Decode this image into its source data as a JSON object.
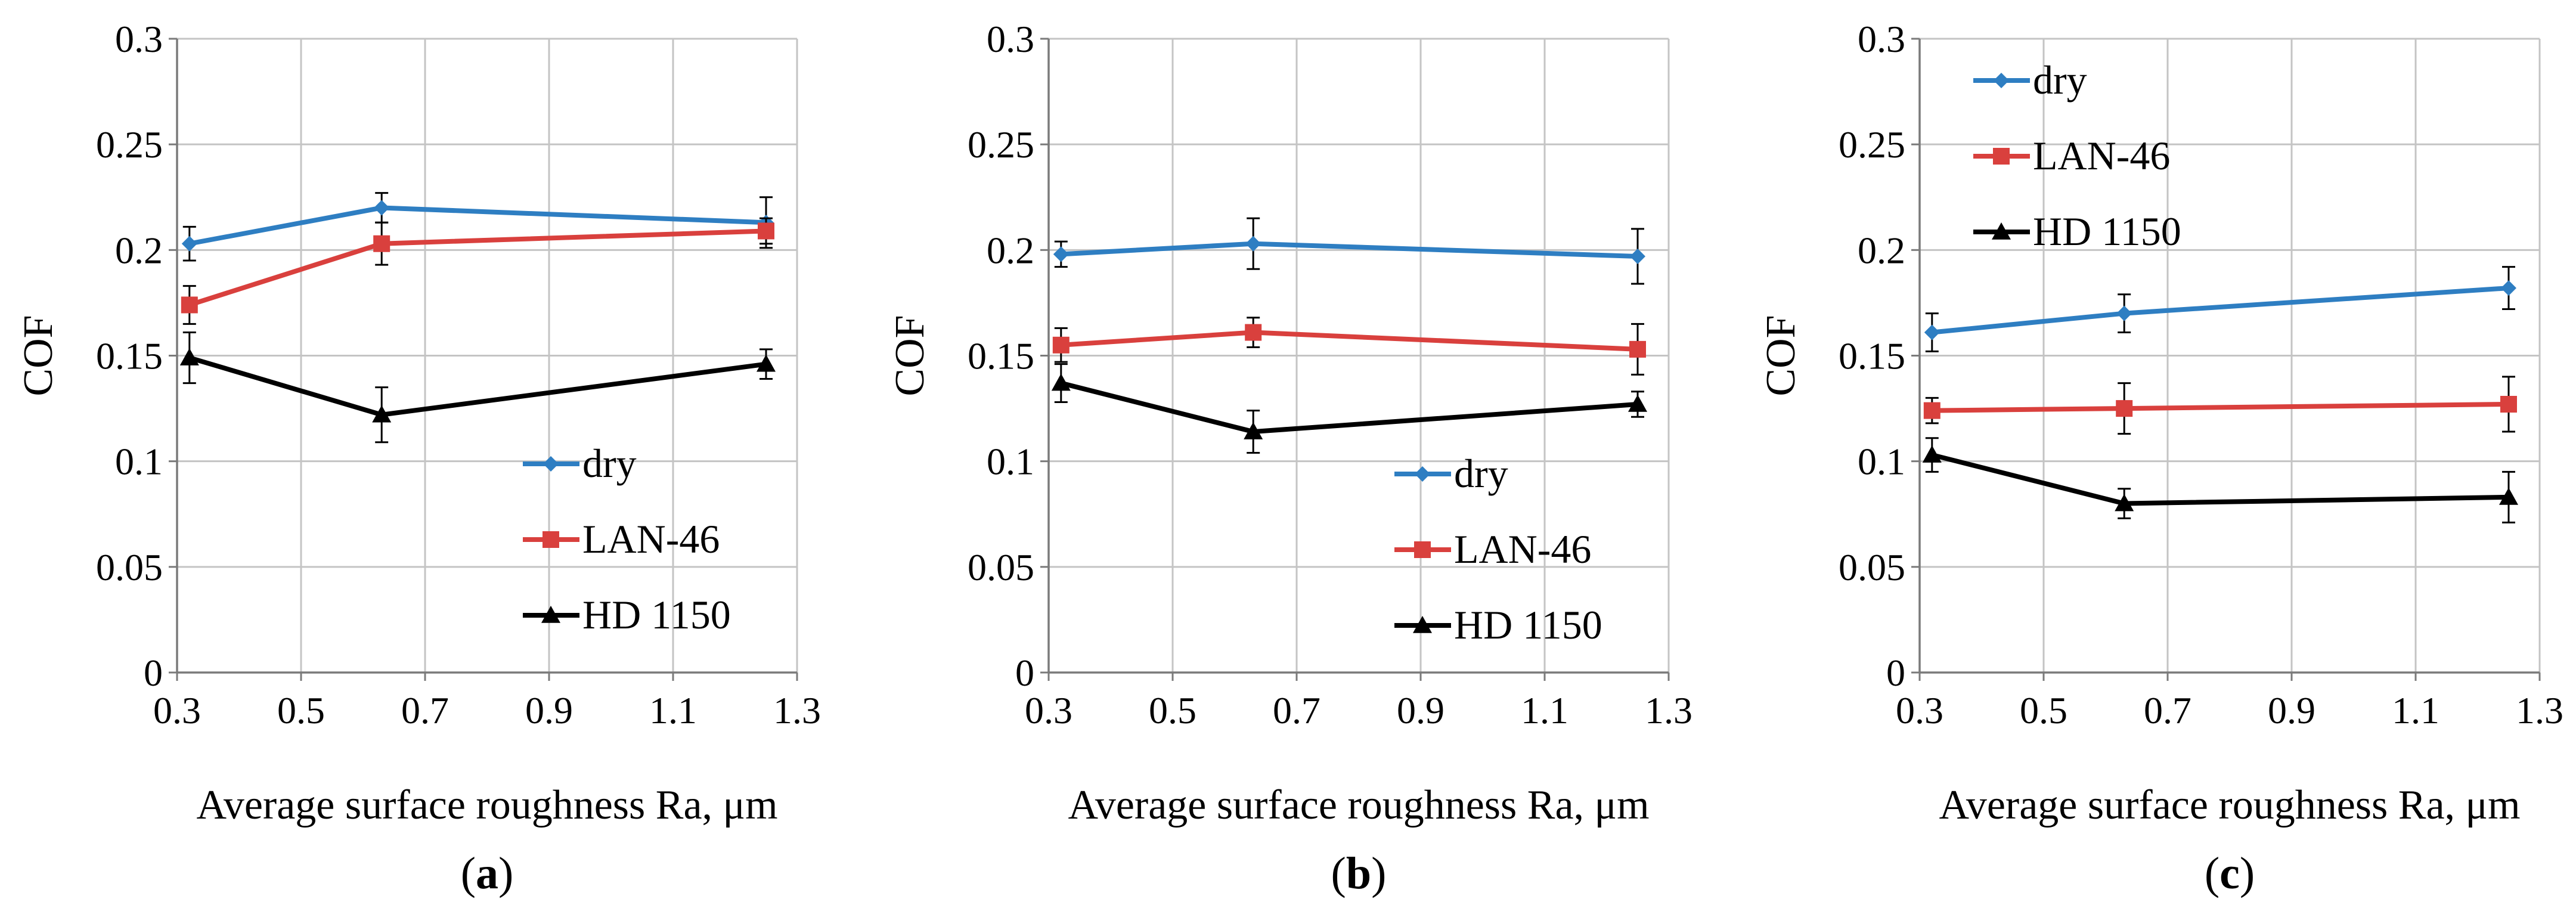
{
  "figure": {
    "x_axis_label": "Average surface roughness Ra, μm",
    "y_axis_label": "COF"
  },
  "chart_data": [
    {
      "type": "line",
      "caption": {
        "open": "(",
        "letter": "a",
        "close": ")"
      },
      "legend_position": "bottom-right",
      "xlabel": "Average surface roughness Ra, μm",
      "ylabel": "COF",
      "xlim": [
        0.3,
        1.3
      ],
      "ylim": [
        0,
        0.3
      ],
      "x_ticks": [
        "0.3",
        "0.5",
        "0.7",
        "0.9",
        "1.1",
        "1.3"
      ],
      "y_ticks": [
        "0",
        "0.05",
        "0.1",
        "0.15",
        "0.2",
        "0.25",
        "0.3"
      ],
      "x": [
        0.32,
        0.63,
        1.25
      ],
      "series": [
        {
          "name": "dry",
          "color": "#2E7EC2",
          "marker": "diamond",
          "values": [
            0.203,
            0.22,
            0.213
          ],
          "errors": [
            0.008,
            0.007,
            0.012
          ]
        },
        {
          "name": "LAN-46",
          "color": "#D9403D",
          "marker": "square",
          "values": [
            0.174,
            0.203,
            0.209
          ],
          "errors": [
            0.009,
            0.01,
            0.006
          ]
        },
        {
          "name": "HD 1150",
          "color": "#000000",
          "marker": "triangle",
          "values": [
            0.149,
            0.122,
            0.146
          ],
          "errors": [
            0.012,
            0.013,
            0.007
          ]
        }
      ]
    },
    {
      "type": "line",
      "caption": {
        "open": "(",
        "letter": "b",
        "close": ")"
      },
      "legend_position": "bottom-right",
      "xlabel": "Average surface roughness Ra, μm",
      "ylabel": "COF",
      "xlim": [
        0.3,
        1.3
      ],
      "ylim": [
        0,
        0.3
      ],
      "x_ticks": [
        "0.3",
        "0.5",
        "0.7",
        "0.9",
        "1.1",
        "1.3"
      ],
      "y_ticks": [
        "0",
        "0.05",
        "0.1",
        "0.15",
        "0.2",
        "0.25",
        "0.3"
      ],
      "x": [
        0.32,
        0.63,
        1.25
      ],
      "series": [
        {
          "name": "dry",
          "color": "#2E7EC2",
          "marker": "diamond",
          "values": [
            0.198,
            0.203,
            0.197
          ],
          "errors": [
            0.006,
            0.012,
            0.013
          ]
        },
        {
          "name": "LAN-46",
          "color": "#D9403D",
          "marker": "square",
          "values": [
            0.155,
            0.161,
            0.153
          ],
          "errors": [
            0.008,
            0.007,
            0.012
          ]
        },
        {
          "name": "HD 1150",
          "color": "#000000",
          "marker": "triangle",
          "values": [
            0.137,
            0.114,
            0.127
          ],
          "errors": [
            0.009,
            0.01,
            0.006
          ]
        }
      ]
    },
    {
      "type": "line",
      "caption": {
        "open": "(",
        "letter": "c",
        "close": ")"
      },
      "legend_position": "top-left",
      "xlabel": "Average surface roughness Ra, μm",
      "ylabel": "COF",
      "xlim": [
        0.3,
        1.3
      ],
      "ylim": [
        0,
        0.3
      ],
      "x_ticks": [
        "0.3",
        "0.5",
        "0.7",
        "0.9",
        "1.1",
        "1.3"
      ],
      "y_ticks": [
        "0",
        "0.05",
        "0.1",
        "0.15",
        "0.2",
        "0.25",
        "0.3"
      ],
      "x": [
        0.32,
        0.63,
        1.25
      ],
      "series": [
        {
          "name": "dry",
          "color": "#2E7EC2",
          "marker": "diamond",
          "values": [
            0.161,
            0.17,
            0.182
          ],
          "errors": [
            0.009,
            0.009,
            0.01
          ]
        },
        {
          "name": "LAN-46",
          "color": "#D9403D",
          "marker": "square",
          "values": [
            0.124,
            0.125,
            0.127
          ],
          "errors": [
            0.006,
            0.012,
            0.013
          ]
        },
        {
          "name": "HD 1150",
          "color": "#000000",
          "marker": "triangle",
          "values": [
            0.103,
            0.08,
            0.083
          ],
          "errors": [
            0.008,
            0.007,
            0.012
          ]
        }
      ]
    }
  ]
}
